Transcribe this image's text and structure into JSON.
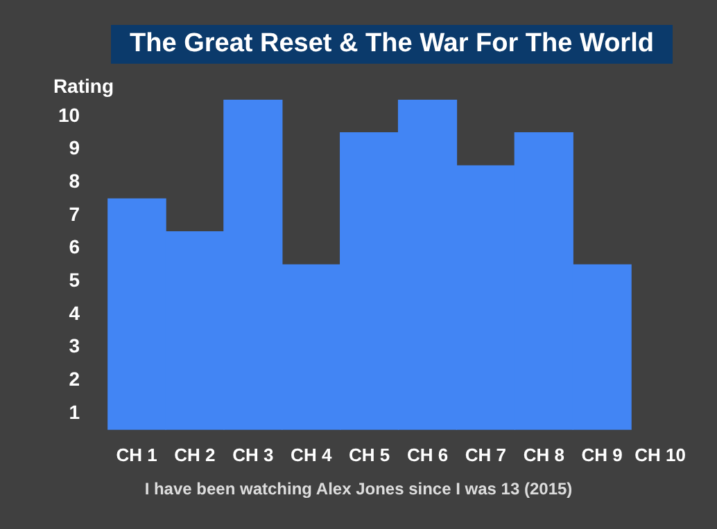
{
  "chart_data": {
    "type": "bar",
    "title": "The Great Reset & The War For The World",
    "ylabel": "Rating",
    "categories": [
      "CH 1",
      "CH 2",
      "CH 3",
      "CH 4",
      "CH 5",
      "CH 6",
      "CH 7",
      "CH 8",
      "CH 9",
      "CH 10"
    ],
    "values": [
      7,
      6,
      10,
      5,
      9,
      10,
      8,
      9,
      5,
      null
    ],
    "base": [
      0.5,
      0.5,
      0.5,
      0.5,
      0.5,
      0.5,
      0.5,
      0.5,
      0.5,
      null
    ],
    "color": "#4285f4",
    "ylim": [
      0.5,
      10.5
    ],
    "yticks": [
      1,
      2,
      3,
      4,
      5,
      6,
      7,
      8,
      9,
      10
    ],
    "legend": false,
    "annotations": [
      "I have been watching Alex Jones since I was 13 (2015)"
    ]
  }
}
